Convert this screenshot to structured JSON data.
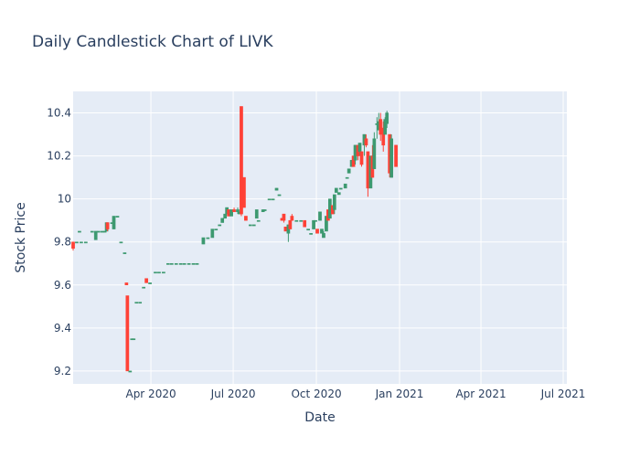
{
  "chart_data": {
    "type": "candlestick",
    "title": "Daily Candlestick Chart of LIVK",
    "xlabel": "Date",
    "ylabel": "Stock Price",
    "xlim": [
      "2020-01-06",
      "2021-07-05"
    ],
    "ylim": [
      9.14,
      10.5
    ],
    "x_ticks": [
      {
        "date": "2020-04-01",
        "label": "Apr 2020"
      },
      {
        "date": "2020-07-01",
        "label": "Jul 2020"
      },
      {
        "date": "2020-10-01",
        "label": "Oct 2020"
      },
      {
        "date": "2021-01-01",
        "label": "Jan 2021"
      },
      {
        "date": "2021-04-01",
        "label": "Apr 2021"
      },
      {
        "date": "2021-07-01",
        "label": "Jul 2021"
      }
    ],
    "y_ticks": [
      {
        "value": 9.2,
        "label": "9.2"
      },
      {
        "value": 9.4,
        "label": "9.4"
      },
      {
        "value": 9.6,
        "label": "9.6"
      },
      {
        "value": 9.8,
        "label": "9.8"
      },
      {
        "value": 10.0,
        "label": "10"
      },
      {
        "value": 10.2,
        "label": "10.2"
      },
      {
        "value": 10.4,
        "label": "10.4"
      }
    ],
    "grid": true,
    "colors": {
      "increasing": "#3D9970",
      "decreasing": "#FF4136",
      "plot_background": "#E5ECF6",
      "grid": "#ffffff",
      "text": "#2a3f5f"
    },
    "series": [
      [
        "2020-01-06",
        9.8,
        9.8,
        9.76,
        9.77
      ],
      [
        "2020-01-10",
        9.8,
        9.8,
        9.8,
        9.8
      ],
      [
        "2020-01-13",
        9.85,
        9.85,
        9.85,
        9.85
      ],
      [
        "2020-01-15",
        9.8,
        9.8,
        9.8,
        9.8
      ],
      [
        "2020-01-20",
        9.8,
        9.8,
        9.8,
        9.8
      ],
      [
        "2020-01-27",
        9.85,
        9.85,
        9.85,
        9.85
      ],
      [
        "2020-01-31",
        9.81,
        9.85,
        9.81,
        9.85
      ],
      [
        "2020-02-03",
        9.85,
        9.85,
        9.85,
        9.85
      ],
      [
        "2020-02-07",
        9.85,
        9.85,
        9.85,
        9.85
      ],
      [
        "2020-02-10",
        9.85,
        9.85,
        9.85,
        9.85
      ],
      [
        "2020-02-12",
        9.85,
        9.89,
        9.85,
        9.89
      ],
      [
        "2020-02-13",
        9.89,
        9.89,
        9.85,
        9.86
      ],
      [
        "2020-02-18",
        9.89,
        9.89,
        9.89,
        9.89
      ],
      [
        "2020-02-20",
        9.86,
        9.92,
        9.86,
        9.92
      ],
      [
        "2020-02-24",
        9.92,
        9.92,
        9.92,
        9.92
      ],
      [
        "2020-02-28",
        9.8,
        9.8,
        9.8,
        9.8
      ],
      [
        "2020-03-03",
        9.75,
        9.75,
        9.75,
        9.75
      ],
      [
        "2020-03-05",
        9.61,
        9.61,
        9.6,
        9.6
      ],
      [
        "2020-03-06",
        9.55,
        9.55,
        9.2,
        9.2
      ],
      [
        "2020-03-09",
        9.2,
        9.2,
        9.2,
        9.2
      ],
      [
        "2020-03-11",
        9.35,
        9.35,
        9.35,
        9.35
      ],
      [
        "2020-03-13",
        9.35,
        9.35,
        9.35,
        9.35
      ],
      [
        "2020-03-16",
        9.52,
        9.52,
        9.52,
        9.52
      ],
      [
        "2020-03-20",
        9.52,
        9.52,
        9.52,
        9.52
      ],
      [
        "2020-03-24",
        9.59,
        9.59,
        9.59,
        9.59
      ],
      [
        "2020-03-27",
        9.63,
        9.63,
        9.61,
        9.61
      ],
      [
        "2020-03-31",
        9.61,
        9.61,
        9.61,
        9.61
      ],
      [
        "2020-04-06",
        9.66,
        9.66,
        9.66,
        9.66
      ],
      [
        "2020-04-10",
        9.66,
        9.66,
        9.66,
        9.66
      ],
      [
        "2020-04-15",
        9.66,
        9.66,
        9.66,
        9.66
      ],
      [
        "2020-04-20",
        9.7,
        9.7,
        9.7,
        9.7
      ],
      [
        "2020-04-24",
        9.7,
        9.7,
        9.7,
        9.7
      ],
      [
        "2020-04-29",
        9.7,
        9.7,
        9.7,
        9.7
      ],
      [
        "2020-05-04",
        9.7,
        9.7,
        9.7,
        9.7
      ],
      [
        "2020-05-08",
        9.7,
        9.7,
        9.7,
        9.7
      ],
      [
        "2020-05-13",
        9.7,
        9.7,
        9.7,
        9.7
      ],
      [
        "2020-05-18",
        9.7,
        9.7,
        9.7,
        9.7
      ],
      [
        "2020-05-22",
        9.7,
        9.7,
        9.7,
        9.7
      ],
      [
        "2020-05-29",
        9.79,
        9.82,
        9.79,
        9.82
      ],
      [
        "2020-06-03",
        9.82,
        9.82,
        9.82,
        9.82
      ],
      [
        "2020-06-08",
        9.82,
        9.86,
        9.82,
        9.86
      ],
      [
        "2020-06-12",
        9.86,
        9.86,
        9.86,
        9.86
      ],
      [
        "2020-06-16",
        9.88,
        9.88,
        9.88,
        9.88
      ],
      [
        "2020-06-19",
        9.89,
        9.91,
        9.89,
        9.91
      ],
      [
        "2020-06-22",
        9.91,
        9.93,
        9.91,
        9.93
      ],
      [
        "2020-06-24",
        9.93,
        9.96,
        9.93,
        9.96
      ],
      [
        "2020-06-26",
        9.95,
        9.95,
        9.92,
        9.92
      ],
      [
        "2020-06-29",
        9.92,
        9.95,
        9.92,
        9.95
      ],
      [
        "2020-07-02",
        9.95,
        9.96,
        9.94,
        9.94
      ],
      [
        "2020-07-06",
        9.94,
        9.96,
        9.93,
        9.95
      ],
      [
        "2020-07-08",
        9.93,
        9.94,
        9.93,
        9.94
      ],
      [
        "2020-07-10",
        10.43,
        10.43,
        9.92,
        9.93
      ],
      [
        "2020-07-13",
        10.1,
        10.1,
        9.96,
        9.96
      ],
      [
        "2020-07-15",
        9.92,
        9.92,
        9.9,
        9.9
      ],
      [
        "2020-07-20",
        9.88,
        9.88,
        9.88,
        9.88
      ],
      [
        "2020-07-24",
        9.88,
        9.88,
        9.88,
        9.88
      ],
      [
        "2020-07-27",
        9.91,
        9.95,
        9.91,
        9.95
      ],
      [
        "2020-07-29",
        9.9,
        9.9,
        9.9,
        9.9
      ],
      [
        "2020-08-03",
        9.94,
        9.95,
        9.94,
        9.95
      ],
      [
        "2020-08-05",
        9.95,
        9.95,
        9.95,
        9.95
      ],
      [
        "2020-08-10",
        10.0,
        10.0,
        10.0,
        10.0
      ],
      [
        "2020-08-14",
        10.0,
        10.0,
        10.0,
        10.0
      ],
      [
        "2020-08-18",
        10.04,
        10.05,
        10.04,
        10.05
      ],
      [
        "2020-08-21",
        10.02,
        10.02,
        10.02,
        10.02
      ],
      [
        "2020-08-24",
        9.91,
        9.91,
        9.9,
        9.9
      ],
      [
        "2020-08-26",
        9.93,
        9.93,
        9.89,
        9.9
      ],
      [
        "2020-08-28",
        9.87,
        9.87,
        9.85,
        9.85
      ],
      [
        "2020-08-31",
        9.84,
        9.88,
        9.8,
        9.88
      ],
      [
        "2020-09-02",
        9.9,
        9.9,
        9.86,
        9.86
      ],
      [
        "2020-09-04",
        9.92,
        9.93,
        9.9,
        9.9
      ],
      [
        "2020-09-09",
        9.9,
        9.9,
        9.9,
        9.9
      ],
      [
        "2020-09-14",
        9.9,
        9.9,
        9.9,
        9.9
      ],
      [
        "2020-09-18",
        9.9,
        9.9,
        9.87,
        9.87
      ],
      [
        "2020-09-22",
        9.86,
        9.86,
        9.86,
        9.86
      ],
      [
        "2020-09-25",
        9.84,
        9.84,
        9.84,
        9.84
      ],
      [
        "2020-09-28",
        9.86,
        9.9,
        9.86,
        9.9
      ],
      [
        "2020-09-30",
        9.9,
        9.9,
        9.9,
        9.9
      ],
      [
        "2020-10-02",
        9.86,
        9.86,
        9.84,
        9.84
      ],
      [
        "2020-10-05",
        9.9,
        9.94,
        9.9,
        9.94
      ],
      [
        "2020-10-07",
        9.84,
        9.86,
        9.84,
        9.86
      ],
      [
        "2020-10-09",
        9.82,
        9.85,
        9.82,
        9.84
      ],
      [
        "2020-10-12",
        9.85,
        9.92,
        9.85,
        9.92
      ],
      [
        "2020-10-14",
        9.95,
        9.95,
        9.9,
        9.9
      ],
      [
        "2020-10-16",
        9.91,
        10.0,
        9.91,
        10.0
      ],
      [
        "2020-10-19",
        9.97,
        9.97,
        9.93,
        9.93
      ],
      [
        "2020-10-21",
        9.95,
        10.02,
        9.93,
        10.02
      ],
      [
        "2020-10-23",
        10.03,
        10.05,
        10.03,
        10.05
      ],
      [
        "2020-10-26",
        10.02,
        10.03,
        10.02,
        10.03
      ],
      [
        "2020-10-28",
        10.05,
        10.05,
        10.05,
        10.05
      ],
      [
        "2020-11-02",
        10.05,
        10.07,
        10.05,
        10.07
      ],
      [
        "2020-11-04",
        10.1,
        10.1,
        10.1,
        10.1
      ],
      [
        "2020-11-06",
        10.12,
        10.14,
        10.12,
        10.14
      ],
      [
        "2020-11-09",
        10.15,
        10.18,
        10.15,
        10.18
      ],
      [
        "2020-11-11",
        10.2,
        10.2,
        10.15,
        10.15
      ],
      [
        "2020-11-13",
        10.18,
        10.25,
        10.16,
        10.25
      ],
      [
        "2020-11-16",
        10.25,
        10.25,
        10.18,
        10.2
      ],
      [
        "2020-11-18",
        10.22,
        10.26,
        10.2,
        10.26
      ],
      [
        "2020-11-20",
        10.22,
        10.22,
        10.15,
        10.16
      ],
      [
        "2020-11-23",
        10.25,
        10.3,
        10.2,
        10.3
      ],
      [
        "2020-11-25",
        10.28,
        10.3,
        10.24,
        10.25
      ],
      [
        "2020-11-27",
        10.22,
        10.22,
        10.01,
        10.05
      ],
      [
        "2020-11-30",
        10.05,
        10.2,
        10.05,
        10.2
      ],
      [
        "2020-12-02",
        10.2,
        10.25,
        10.1,
        10.1
      ],
      [
        "2020-12-04",
        10.14,
        10.31,
        10.14,
        10.28
      ],
      [
        "2020-12-07",
        10.35,
        10.38,
        10.28,
        10.35
      ],
      [
        "2020-12-09",
        10.32,
        10.4,
        10.32,
        10.36
      ],
      [
        "2020-12-11",
        10.37,
        10.4,
        10.27,
        10.3
      ],
      [
        "2020-12-14",
        10.33,
        10.36,
        10.22,
        10.25
      ],
      [
        "2020-12-16",
        10.3,
        10.38,
        10.3,
        10.37
      ],
      [
        "2020-12-18",
        10.35,
        10.41,
        10.33,
        10.4
      ],
      [
        "2020-12-21",
        10.3,
        10.3,
        10.1,
        10.12
      ],
      [
        "2020-12-23",
        10.1,
        10.3,
        10.1,
        10.28
      ],
      [
        "2020-12-28",
        10.25,
        10.25,
        10.15,
        10.15
      ]
    ]
  }
}
